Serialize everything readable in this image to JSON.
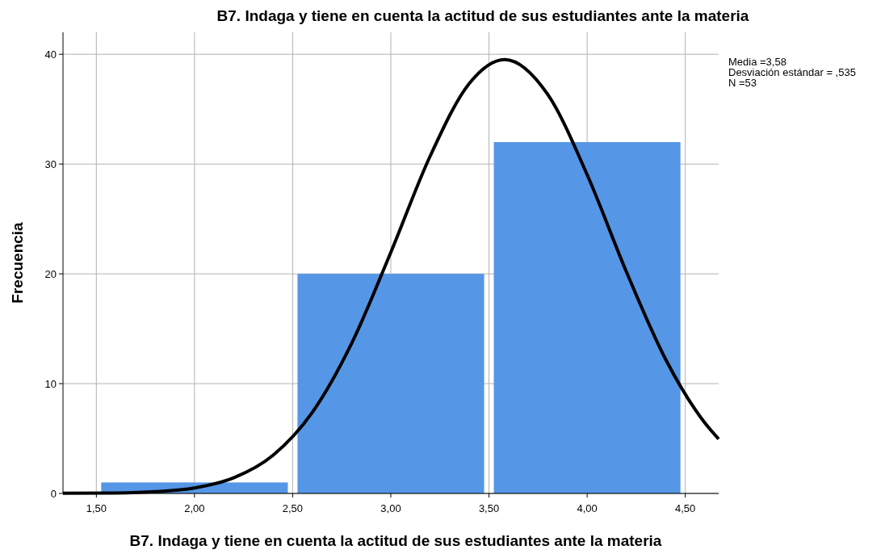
{
  "chart_data": {
    "type": "histogram",
    "title": "B7. Indaga y tiene en cuenta la actitud de sus estudiantes ante la materia",
    "xlabel": "B7. Indaga y tiene en cuenta la actitud de sus estudiantes ante la materia",
    "ylabel": "Frecuencia",
    "bins": [
      1.5,
      2.5,
      3.5,
      4.5
    ],
    "values": [
      1,
      20,
      32
    ],
    "color": "#5596e6",
    "series": [
      {
        "type": "line",
        "color": "#000000",
        "x": [
          1.33,
          1.6,
          1.8,
          2.0,
          2.2,
          2.4,
          2.6,
          2.8,
          3.0,
          3.2,
          3.4,
          3.58,
          3.8,
          4.0,
          4.2,
          4.4,
          4.6,
          4.67
        ],
        "values": [
          0.01,
          0.04,
          0.16,
          0.5,
          1.42,
          3.47,
          7.38,
          13.65,
          21.96,
          30.71,
          37.35,
          39.52,
          36.32,
          29.04,
          20.19,
          12.21,
          6.42,
          4.96
        ]
      }
    ],
    "xlim": [
      1.33,
      4.67
    ],
    "xticks": [
      {
        "value": 1.5,
        "label": "1,50"
      },
      {
        "value": 2,
        "label": "2,00"
      },
      {
        "value": 2.5,
        "label": "2,50"
      },
      {
        "value": 3,
        "label": "3,00"
      },
      {
        "value": 3.5,
        "label": "3,50"
      },
      {
        "value": 4,
        "label": "4,00"
      },
      {
        "value": 4.5,
        "label": "4,50"
      }
    ],
    "ylim": [
      0,
      42
    ],
    "yticks": [
      0,
      10,
      20,
      30,
      40
    ],
    "grid": true,
    "line_style": "solid",
    "annotations": [
      "Media =3,58",
      "Desviación estándar = ,535",
      "N =53"
    ]
  }
}
